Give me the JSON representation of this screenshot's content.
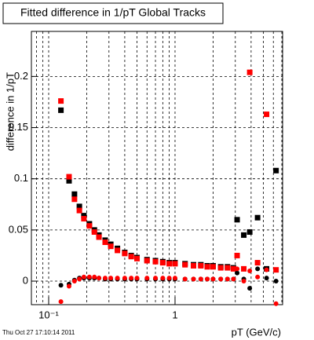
{
  "chart_data": {
    "type": "scatter",
    "title": "Fitted difference in 1/pT  Global Tracks",
    "x_label": "pT (GeV/c)",
    "y_label": "difference in 1/pT",
    "timestamp": "Thu Oct 27 17:10:14 2011",
    "log_x": true,
    "grid": true,
    "xlim": [
      0.073,
      7.1
    ],
    "ylim": [
      -0.023,
      0.244
    ],
    "xticks": [
      {
        "value": 0.1,
        "label": "10⁻¹"
      },
      1
    ],
    "xgrid": [
      0.08,
      0.09,
      0.1,
      0.2,
      0.3,
      0.4,
      0.5,
      0.6,
      0.7,
      0.8,
      0.9,
      1,
      2,
      3,
      4,
      5,
      6,
      7
    ],
    "yticks": [
      0,
      0.05,
      0.1,
      0.15,
      0.2
    ],
    "x": [
      0.125,
      0.145,
      0.16,
      0.175,
      0.19,
      0.21,
      0.23,
      0.25,
      0.28,
      0.31,
      0.35,
      0.4,
      0.45,
      0.5,
      0.6,
      0.7,
      0.8,
      0.9,
      1.0,
      1.2,
      1.4,
      1.6,
      1.8,
      2.0,
      2.3,
      2.6,
      2.9,
      3.1,
      3.5,
      3.9,
      4.5,
      5.3,
      6.3
    ],
    "series": [
      {
        "marker": "square",
        "color": "#000000",
        "values": [
          0.167,
          0.098,
          0.085,
          0.073,
          0.064,
          0.056,
          0.05,
          0.045,
          0.04,
          0.036,
          0.032,
          0.028,
          0.025,
          0.023,
          0.021,
          0.02,
          0.019,
          0.018,
          0.018,
          0.017,
          0.016,
          0.016,
          0.015,
          0.015,
          0.014,
          0.014,
          0.013,
          0.06,
          0.045,
          0.048,
          0.062,
          0.012,
          0.108
        ]
      },
      {
        "marker": "square",
        "color": "#ff0000",
        "values": [
          0.176,
          0.102,
          0.08,
          0.069,
          0.061,
          0.054,
          0.048,
          0.043,
          0.038,
          0.034,
          0.03,
          0.027,
          0.024,
          0.022,
          0.02,
          0.019,
          0.018,
          0.017,
          0.017,
          0.016,
          0.015,
          0.015,
          0.014,
          0.014,
          0.013,
          0.013,
          0.012,
          0.025,
          0.012,
          0.204,
          0.018,
          0.163,
          0.011
        ]
      },
      {
        "marker": "circle",
        "color": "#000000",
        "values": [
          -0.004,
          -0.003,
          0.001,
          0.003,
          0.003,
          0.003,
          0.003,
          0.003,
          0.002,
          0.002,
          0.002,
          0.002,
          0.002,
          0.002,
          0.002,
          0.002,
          0.002,
          0.002,
          0.002,
          0.002,
          0.002,
          0.002,
          0.002,
          0.002,
          0.002,
          0.002,
          0.002,
          0.008,
          0.002,
          -0.007,
          0.012,
          0.003,
          0.0
        ]
      },
      {
        "marker": "circle",
        "color": "#ff0000",
        "values": [
          -0.02,
          -0.005,
          0.0,
          0.002,
          0.004,
          0.004,
          0.004,
          0.003,
          0.003,
          0.003,
          0.003,
          0.003,
          0.003,
          0.003,
          0.003,
          0.003,
          0.003,
          0.003,
          0.003,
          0.002,
          0.002,
          0.002,
          0.002,
          0.002,
          0.002,
          0.002,
          0.002,
          0.012,
          0.0,
          0.01,
          0.004,
          0.011,
          -0.022
        ]
      }
    ]
  }
}
